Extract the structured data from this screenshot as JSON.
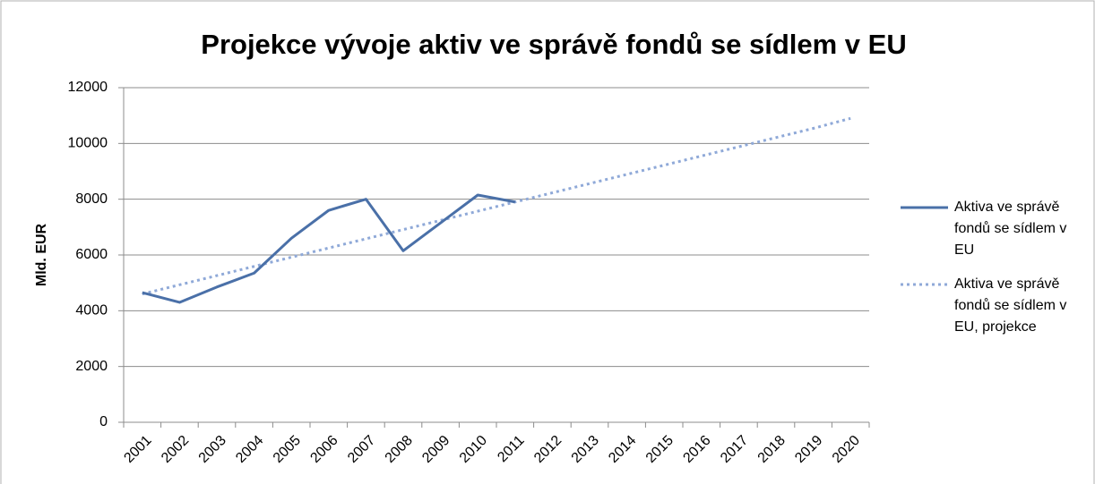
{
  "chart_data": {
    "type": "line",
    "title": "Projekce vývoje aktiv ve správě fondů se sídlem v EU",
    "y_label": "Mld. EUR",
    "categories": [
      "2001",
      "2002",
      "2003",
      "2004",
      "2005",
      "2006",
      "2007",
      "2008",
      "2009",
      "2010",
      "2011",
      "2012",
      "2013",
      "2014",
      "2015",
      "2016",
      "2017",
      "2018",
      "2019",
      "2020"
    ],
    "series": [
      {
        "name": "Aktiva ve správě fondů se sídlem v EU",
        "color": "#4a70a8",
        "style": "solid",
        "values": [
          4650,
          4300,
          4850,
          5350,
          6600,
          7600,
          8000,
          6150,
          7150,
          8150,
          7900,
          null,
          null,
          null,
          null,
          null,
          null,
          null,
          null,
          null
        ]
      },
      {
        "name": "Aktiva ve správě fondů se sídlem v EU, projekce",
        "color": "#8fa9d8",
        "style": "dotted",
        "values": [
          4600,
          4930,
          5260,
          5590,
          5920,
          6250,
          6580,
          6910,
          7240,
          7570,
          7900,
          8230,
          8560,
          8890,
          9220,
          9550,
          9880,
          10210,
          10540,
          10900
        ]
      }
    ],
    "ylim": [
      0,
      12000
    ],
    "yticks": [
      0,
      2000,
      4000,
      6000,
      8000,
      10000,
      12000
    ],
    "grid": true,
    "legend": "right"
  }
}
